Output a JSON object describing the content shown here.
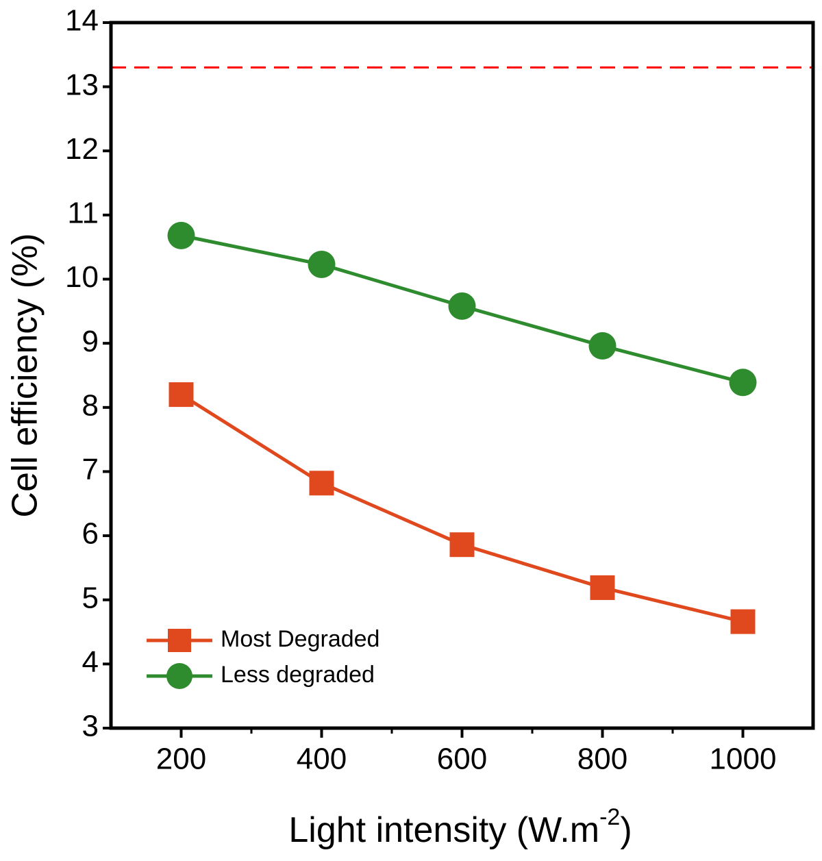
{
  "chart_data": {
    "type": "line",
    "x_label": [
      "Light intensity (W.m",
      "-2",
      ")"
    ],
    "y_label": "Cell efficiency (%)",
    "x": [
      200,
      400,
      600,
      800,
      1000
    ],
    "series": [
      {
        "name": "Most Degraded",
        "color": "#e0481e",
        "marker": "square",
        "values": [
          8.2,
          6.82,
          5.86,
          5.19,
          4.66
        ]
      },
      {
        "name": "Less degraded",
        "color": "#2e8b2e",
        "marker": "circle",
        "values": [
          10.68,
          10.23,
          9.58,
          8.96,
          8.39
        ]
      }
    ],
    "reference_line": {
      "value": 13.3,
      "color": "#ff0000",
      "style": "dashed"
    },
    "xlim": [
      100,
      1100
    ],
    "xticks": [
      200,
      400,
      600,
      800,
      1000
    ],
    "xminorticks": [
      300,
      500,
      700,
      900
    ],
    "ylim": [
      3,
      14
    ],
    "yticks": [
      3,
      4,
      5,
      6,
      7,
      8,
      9,
      10,
      11,
      12,
      13,
      14
    ],
    "grid": false,
    "legend": "lower left"
  }
}
